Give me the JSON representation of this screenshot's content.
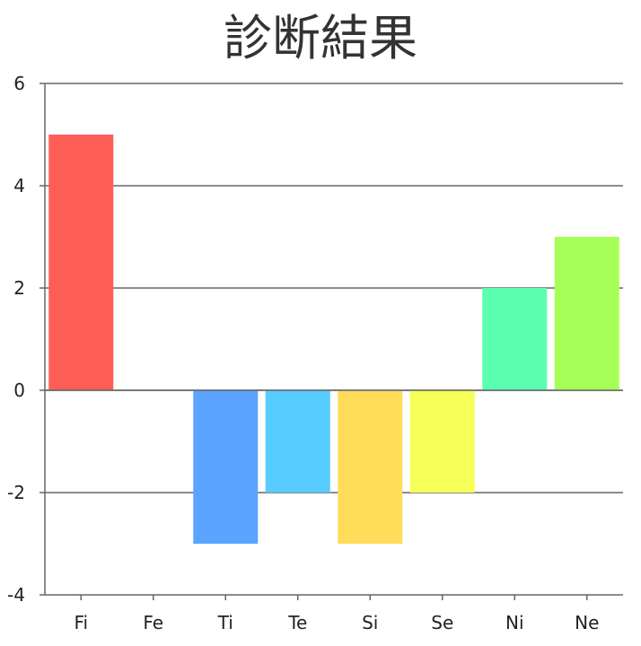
{
  "chart_data": {
    "type": "bar",
    "title": "診断結果",
    "xlabel": "",
    "ylabel": "",
    "categories": [
      "Fi",
      "Fe",
      "Ti",
      "Te",
      "Si",
      "Se",
      "Ni",
      "Ne"
    ],
    "values": [
      5,
      0,
      -3,
      -2,
      -3,
      -2,
      2,
      3
    ],
    "colors": [
      "#ff5e57",
      "#ff5e57",
      "#5aa4ff",
      "#57ccff",
      "#ffdd5a",
      "#f6ff57",
      "#5affb0",
      "#a6ff57"
    ],
    "ylim": [
      -4,
      6
    ],
    "yticks": [
      "-4",
      "-2",
      "0",
      "2",
      "4",
      "6"
    ],
    "grid": true,
    "legend": "none"
  }
}
